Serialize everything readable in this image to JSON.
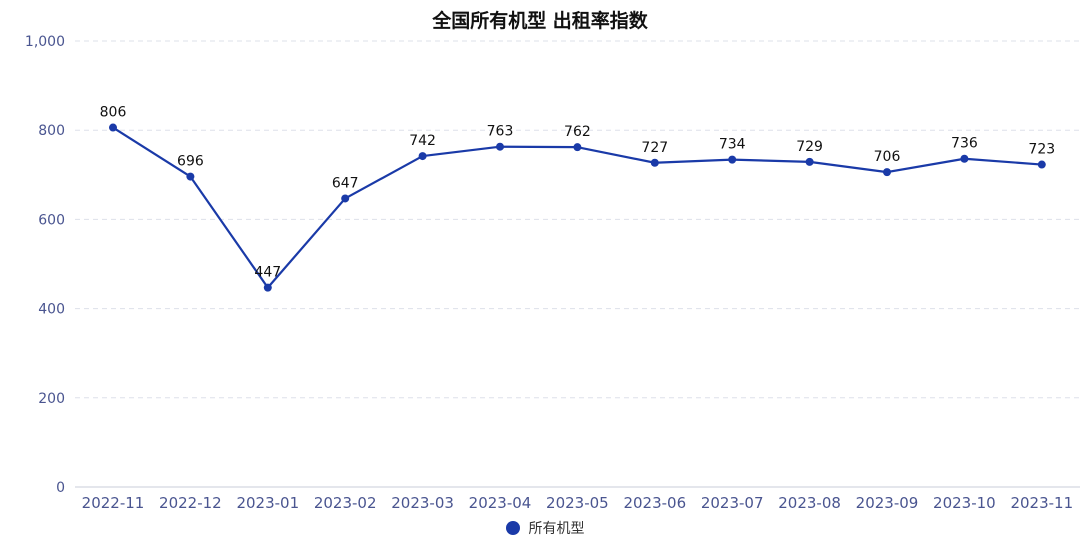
{
  "chart_data": {
    "type": "line",
    "title": "全国所有机型 出租率指数",
    "categories": [
      "2022-11",
      "2022-12",
      "2023-01",
      "2023-02",
      "2023-03",
      "2023-04",
      "2023-05",
      "2023-06",
      "2023-07",
      "2023-08",
      "2023-09",
      "2023-10",
      "2023-11"
    ],
    "series": [
      {
        "name": "所有机型",
        "values": [
          806,
          696,
          447,
          647,
          742,
          763,
          762,
          727,
          734,
          729,
          706,
          736,
          723
        ],
        "color": "#1a3aa8"
      }
    ],
    "yticks": [
      "0",
      "200",
      "400",
      "600",
      "800",
      "1,000"
    ],
    "ylim": [
      0,
      1000
    ],
    "xlabel": "",
    "ylabel": "",
    "grid": true,
    "data_labels": true,
    "legend_position": "bottom-center"
  },
  "colors": {
    "axis_text": "#4a5590",
    "grid": "#dde0ea",
    "label_text": "#111111"
  }
}
